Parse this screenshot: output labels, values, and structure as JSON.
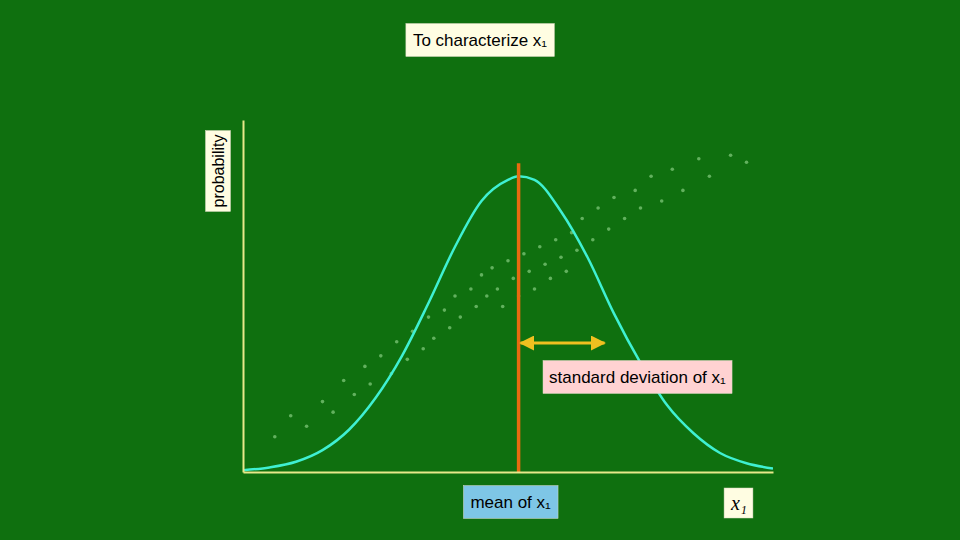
{
  "chart_data": {
    "type": "line",
    "title": "To characterize x₁",
    "x_label": "x₁",
    "y_label": "probability",
    "xlim": [
      0,
      10
    ],
    "ylim": [
      0,
      1
    ],
    "tick_labels": false,
    "series": [
      {
        "type": "scatter",
        "color": "#a8e8a0",
        "marker": "circle",
        "x": [
          0.6,
          0.9,
          1.2,
          1.5,
          1.7,
          1.9,
          2.1,
          2.3,
          2.4,
          2.6,
          2.8,
          2.9,
          3.1,
          3.2,
          3.4,
          3.5,
          3.6,
          3.8,
          3.9,
          4.0,
          4.1,
          4.3,
          4.4,
          4.5,
          4.6,
          4.7,
          4.8,
          4.9,
          5.0,
          5.1,
          5.2,
          5.3,
          5.4,
          5.5,
          5.6,
          5.7,
          5.8,
          5.9,
          6.0,
          6.1,
          6.2,
          6.3,
          6.4,
          6.6,
          6.7,
          6.9,
          7.0,
          7.2,
          7.4,
          7.5,
          7.7,
          7.9,
          8.1,
          8.3,
          8.6,
          8.8,
          9.2,
          9.5
        ],
        "values": [
          0.1,
          0.16,
          0.13,
          0.2,
          0.17,
          0.26,
          0.22,
          0.3,
          0.25,
          0.33,
          0.28,
          0.37,
          0.32,
          0.4,
          0.35,
          0.44,
          0.38,
          0.46,
          0.41,
          0.5,
          0.44,
          0.52,
          0.47,
          0.56,
          0.5,
          0.58,
          0.52,
          0.47,
          0.6,
          0.55,
          0.5,
          0.62,
          0.57,
          0.52,
          0.64,
          0.59,
          0.55,
          0.66,
          0.61,
          0.57,
          0.68,
          0.63,
          0.72,
          0.66,
          0.75,
          0.69,
          0.78,
          0.72,
          0.8,
          0.75,
          0.84,
          0.77,
          0.86,
          0.8,
          0.89,
          0.84,
          0.9,
          0.88
        ]
      },
      {
        "type": "line",
        "color": "#3ff0d2",
        "x": [
          0,
          0.5,
          1,
          1.5,
          2,
          2.5,
          3,
          3.5,
          4,
          4.5,
          5,
          5.2,
          5.5,
          6,
          6.5,
          7,
          7.5,
          8,
          8.5,
          9,
          9.5,
          10
        ],
        "values": [
          0.005,
          0.013,
          0.029,
          0.062,
          0.12,
          0.21,
          0.33,
          0.48,
          0.64,
          0.77,
          0.83,
          0.84,
          0.83,
          0.74,
          0.61,
          0.45,
          0.31,
          0.19,
          0.11,
          0.054,
          0.025,
          0.01
        ]
      }
    ],
    "mean": {
      "label": "mean of x₁",
      "value": 5.2
    },
    "std": {
      "label": "standard deviation of x₁",
      "value": 1.62
    }
  }
}
